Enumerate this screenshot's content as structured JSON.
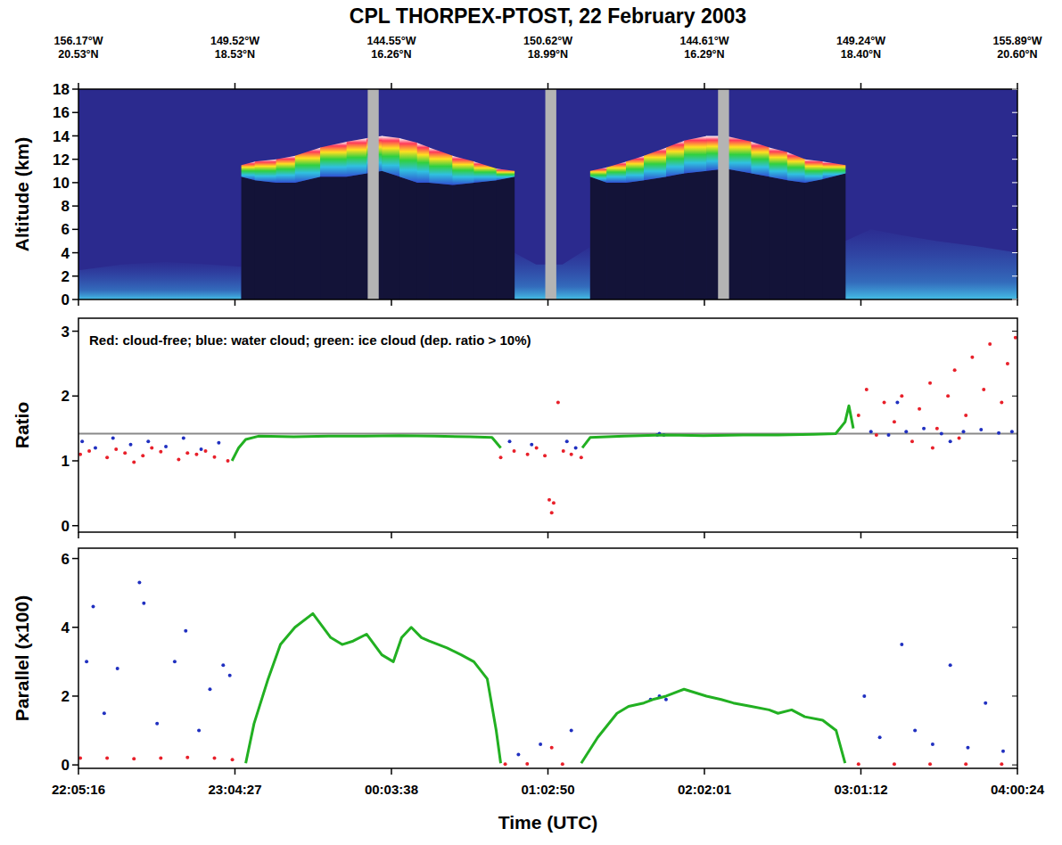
{
  "chart_data": [
    {
      "type": "curtain",
      "title": "CPL THORPEX-PTOST, 22 February 2003",
      "y_label": "Altitude (km)",
      "xlim": [
        79516,
        100824
      ],
      "xticks": [
        79516,
        83067,
        86618,
        90170,
        93721,
        97272,
        100824
      ],
      "ylim": [
        0,
        18
      ],
      "yticks": [
        0,
        2,
        4,
        6,
        8,
        10,
        12,
        14,
        16,
        18
      ],
      "tick_labels": "y",
      "top_ticks": [
        {
          "value": 79516,
          "label": [
            "156.17°W",
            "20.53°N"
          ]
        },
        {
          "value": 83067,
          "label": [
            "149.52°W",
            "18.53°N"
          ]
        },
        {
          "value": 86618,
          "label": [
            "144.55°W",
            "16.26°N"
          ]
        },
        {
          "value": 90170,
          "label": [
            "150.62°W",
            "18.99°N"
          ]
        },
        {
          "value": 93721,
          "label": [
            "144.61°W",
            "16.29°N"
          ]
        },
        {
          "value": 97272,
          "label": [
            "149.24°W",
            "18.40°N"
          ]
        },
        {
          "value": 100824,
          "label": [
            "155.89°W",
            "20.60°N"
          ]
        }
      ],
      "clouds": [
        {
          "x": [
            83211,
            83515,
            84000,
            84429,
            85000,
            85600,
            86053,
            86400,
            86800,
            87200,
            87474,
            88000,
            88489,
            89000,
            89402
          ],
          "top": [
            11.5,
            11.8,
            12.0,
            12.3,
            13.0,
            13.5,
            13.8,
            14.0,
            13.8,
            13.4,
            13.0,
            12.3,
            11.8,
            11.2,
            11.0
          ],
          "base": [
            10.5,
            10.2,
            10.0,
            10.0,
            10.5,
            10.5,
            10.8,
            11.0,
            10.5,
            10.0,
            10.0,
            9.8,
            10.0,
            10.2,
            10.5
          ]
        },
        {
          "x": [
            91128,
            91500,
            91940,
            92346,
            92853,
            93259,
            93767,
            94200,
            94782,
            95188,
            95600,
            95999,
            96405,
            96913
          ],
          "top": [
            11.0,
            11.3,
            11.8,
            12.3,
            13.0,
            13.6,
            14.0,
            14.0,
            13.5,
            13.0,
            12.6,
            12.0,
            11.8,
            11.5
          ],
          "base": [
            10.5,
            10.0,
            10.0,
            10.2,
            10.5,
            10.8,
            11.0,
            11.2,
            10.8,
            10.5,
            10.2,
            10.0,
            10.3,
            10.8
          ]
        }
      ],
      "aerosol_layer": {
        "x": [
          79516,
          80500,
          81500,
          82500,
          83211,
          83300,
          89402,
          89900,
          90500,
          91128,
          91200,
          96913,
          97500,
          98200,
          99000,
          100000,
          100824
        ],
        "top": [
          2.5,
          3.0,
          3.2,
          3.0,
          2.8,
          null,
          4.0,
          3.0,
          3.0,
          4.5,
          null,
          5.0,
          6.0,
          5.5,
          5.0,
          4.5,
          4.0
        ]
      },
      "data_gaps": [
        [
          86080,
          86330
        ],
        [
          90110,
          90360
        ],
        [
          94030,
          94280
        ]
      ]
    },
    {
      "type": "scatter",
      "y_label": "Ratio",
      "annotation": "Red: cloud-free; blue: water cloud; green: ice cloud (dep. ratio > 10%)",
      "xlim": [
        79516,
        100824
      ],
      "xticks": [
        79516,
        83067,
        86618,
        90170,
        93721,
        97272,
        100824
      ],
      "ylim": [
        -0.1,
        3.2
      ],
      "yticks": [
        0,
        1,
        2,
        3
      ],
      "tick_labels": "y",
      "reference_line": 1.42,
      "series": [
        {
          "color": "#e8202a",
          "marker": "dot",
          "x": [
            79557,
            79760,
            80166,
            80370,
            80572,
            80775,
            80978,
            81180,
            81384,
            81790,
            81990,
            82196,
            82400,
            82602,
            82906,
            89098,
            89402,
            89707,
            89910,
            90100,
            90200,
            90255,
            90300,
            90400,
            90519,
            90700,
            90925,
            97218,
            97400,
            97624,
            97800,
            98030,
            98200,
            98436,
            98600,
            98842,
            98900,
            99000,
            99248,
            99400,
            99500,
            99654,
            99800,
            100060,
            100200,
            100466,
            100600,
            100780
          ],
          "values": [
            1.1,
            1.15,
            1.05,
            1.18,
            1.12,
            0.98,
            1.08,
            1.2,
            1.14,
            1.02,
            1.12,
            1.1,
            1.15,
            1.06,
            1.0,
            1.05,
            1.15,
            1.1,
            1.2,
            1.08,
            0.4,
            0.2,
            0.35,
            1.9,
            1.15,
            1.1,
            1.05,
            1.7,
            2.1,
            1.4,
            1.9,
            1.6,
            2.0,
            1.3,
            1.8,
            2.2,
            1.2,
            1.5,
            2.0,
            2.4,
            1.35,
            1.7,
            2.6,
            2.1,
            2.8,
            1.9,
            2.5,
            2.9
          ]
        },
        {
          "color": "#2030c0",
          "marker": "dot",
          "x": [
            79600,
            79900,
            80300,
            80700,
            81100,
            81500,
            81900,
            82300,
            82700,
            89300,
            89800,
            90600,
            90800,
            92650,
            92700,
            92800,
            97500,
            97900,
            98100,
            98300,
            98700,
            99100,
            99300,
            99600,
            100000,
            100400,
            100700
          ],
          "values": [
            1.3,
            1.2,
            1.35,
            1.25,
            1.3,
            1.22,
            1.35,
            1.18,
            1.28,
            1.3,
            1.25,
            1.3,
            1.2,
            1.4,
            1.42,
            1.4,
            1.45,
            1.4,
            1.9,
            1.45,
            1.5,
            1.42,
            1.3,
            1.45,
            1.48,
            1.43,
            1.45
          ]
        },
        {
          "color": "#22b022",
          "type": "line",
          "x": [
            83000,
            83150,
            83312,
            83600,
            84400,
            85200,
            86000,
            86800,
            87600,
            88400,
            88900,
            89100,
            90000,
            90950,
            91128,
            91900,
            92800,
            93700,
            94600,
            95400,
            96200,
            96700,
            96913,
            97000,
            97100
          ],
          "values": [
            1.0,
            1.2,
            1.33,
            1.38,
            1.37,
            1.38,
            1.38,
            1.39,
            1.38,
            1.37,
            1.36,
            1.2,
            null,
            1.2,
            1.36,
            1.38,
            1.4,
            1.39,
            1.4,
            1.4,
            1.41,
            1.42,
            1.6,
            1.85,
            1.5
          ]
        }
      ]
    },
    {
      "type": "scatter",
      "y_label": "Parallel (x100)",
      "x_label": "Time (UTC)",
      "xlim": [
        79516,
        100824
      ],
      "xticks": [
        {
          "value": 79516,
          "label": "22:05:16"
        },
        {
          "value": 83067,
          "label": "23:04:27"
        },
        {
          "value": 86618,
          "label": "00:03:38"
        },
        {
          "value": 90170,
          "label": "01:02:50"
        },
        {
          "value": 93721,
          "label": "02:02:01"
        },
        {
          "value": 97272,
          "label": "03:01:12"
        },
        {
          "value": 100824,
          "label": "04:00:24"
        }
      ],
      "ylim": [
        -0.1,
        6.3
      ],
      "yticks": [
        0,
        2,
        4,
        6
      ],
      "series": [
        {
          "color": "#e8202a",
          "marker": "dot",
          "x": [
            79557,
            80166,
            80775,
            81384,
            81990,
            82602,
            83008,
            89200,
            89700,
            90255,
            90500,
            97218,
            98030,
            98842,
            99654,
            100466
          ],
          "values": [
            0.2,
            0.2,
            0.18,
            0.2,
            0.22,
            0.2,
            0.15,
            0.02,
            0.03,
            0.5,
            0.02,
            0.02,
            0.02,
            0.02,
            0.02,
            0.02
          ]
        },
        {
          "color": "#2030c0",
          "marker": "dot",
          "x": [
            79700,
            79850,
            80100,
            80400,
            80900,
            81000,
            81300,
            81700,
            81950,
            82250,
            82500,
            82800,
            82950,
            89500,
            90000,
            90700,
            92500,
            92700,
            92850,
            97350,
            97700,
            98200,
            98500,
            98900,
            99300,
            99700,
            100100,
            100500
          ],
          "values": [
            3.0,
            4.6,
            1.5,
            2.8,
            5.3,
            4.7,
            1.2,
            3.0,
            3.9,
            1.0,
            2.2,
            2.9,
            2.6,
            0.3,
            0.6,
            1.0,
            1.9,
            2.0,
            1.9,
            2.0,
            0.8,
            3.5,
            1.0,
            0.6,
            2.9,
            0.5,
            1.8,
            0.4
          ]
        },
        {
          "color": "#22b022",
          "type": "line",
          "x": [
            83312,
            83500,
            83820,
            84100,
            84429,
            84835,
            85241,
            85500,
            85748,
            86053,
            86400,
            86662,
            86850,
            87068,
            87300,
            87474,
            87880,
            88200,
            88489,
            88793,
            88996,
            89098,
            90000,
            90925,
            91300,
            91737,
            92000,
            92346,
            92549,
            92853,
            93259,
            93767,
            94100,
            94376,
            94782,
            95188,
            95391,
            95700,
            95999,
            96405,
            96710,
            96913
          ],
          "values": [
            0.05,
            1.2,
            2.5,
            3.5,
            4.0,
            4.4,
            3.7,
            3.5,
            3.6,
            3.8,
            3.2,
            3.0,
            3.7,
            4.0,
            3.7,
            3.6,
            3.4,
            3.2,
            3.0,
            2.5,
            1.0,
            0.05,
            null,
            0.05,
            0.8,
            1.5,
            1.7,
            1.8,
            1.9,
            2.0,
            2.2,
            2.0,
            1.9,
            1.8,
            1.7,
            1.6,
            1.5,
            1.6,
            1.4,
            1.3,
            1.0,
            0.05
          ]
        }
      ]
    }
  ]
}
